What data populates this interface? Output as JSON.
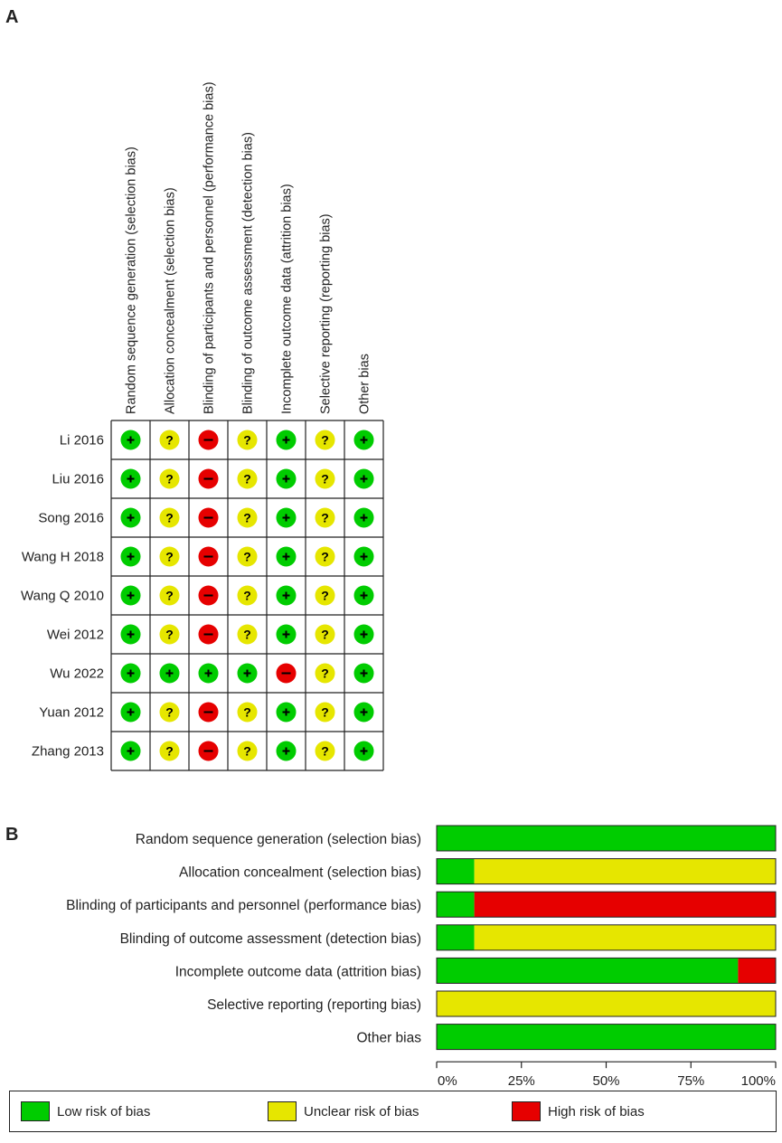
{
  "panels": {
    "a_label": "A",
    "b_label": "B"
  },
  "colors": {
    "low": "#00cc00",
    "unclear": "#e6e600",
    "high": "#e60000"
  },
  "chart_data": [
    {
      "type": "table",
      "domains": [
        "Random sequence generation (selection bias)",
        "Allocation concealment (selection bias)",
        "Blinding of participants and personnel (performance bias)",
        "Blinding of outcome assessment (detection bias)",
        "Incomplete outcome data (attrition bias)",
        "Selective reporting (reporting bias)",
        "Other bias"
      ],
      "studies": [
        {
          "name": "Li 2016",
          "ratings": [
            "+",
            "?",
            "-",
            "?",
            "+",
            "?",
            "+"
          ]
        },
        {
          "name": "Liu 2016",
          "ratings": [
            "+",
            "?",
            "-",
            "?",
            "+",
            "?",
            "+"
          ]
        },
        {
          "name": "Song 2016",
          "ratings": [
            "+",
            "?",
            "-",
            "?",
            "+",
            "?",
            "+"
          ]
        },
        {
          "name": "Wang H 2018",
          "ratings": [
            "+",
            "?",
            "-",
            "?",
            "+",
            "?",
            "+"
          ]
        },
        {
          "name": "Wang Q 2010",
          "ratings": [
            "+",
            "?",
            "-",
            "?",
            "+",
            "?",
            "+"
          ]
        },
        {
          "name": "Wei 2012",
          "ratings": [
            "+",
            "?",
            "-",
            "?",
            "+",
            "?",
            "+"
          ]
        },
        {
          "name": "Wu 2022",
          "ratings": [
            "+",
            "+",
            "+",
            "+",
            "-",
            "?",
            "+"
          ]
        },
        {
          "name": "Yuan 2012",
          "ratings": [
            "+",
            "?",
            "-",
            "?",
            "+",
            "?",
            "+"
          ]
        },
        {
          "name": "Zhang 2013",
          "ratings": [
            "+",
            "?",
            "-",
            "?",
            "+",
            "?",
            "+"
          ]
        }
      ]
    },
    {
      "type": "bar",
      "orientation": "horizontal",
      "stacked": true,
      "categories": [
        "Random sequence generation (selection bias)",
        "Allocation concealment (selection bias)",
        "Blinding of participants and personnel (performance bias)",
        "Blinding of outcome assessment (detection bias)",
        "Incomplete outcome data (attrition bias)",
        "Selective reporting (reporting bias)",
        "Other bias"
      ],
      "series": [
        {
          "name": "Low risk of bias",
          "color": "#00cc00",
          "values": [
            100,
            11.1,
            11.1,
            11.1,
            88.9,
            0,
            100
          ]
        },
        {
          "name": "Unclear risk of bias",
          "color": "#e6e600",
          "values": [
            0,
            88.9,
            0,
            88.9,
            0,
            100,
            0
          ]
        },
        {
          "name": "High risk of bias",
          "color": "#e60000",
          "values": [
            0,
            0,
            88.9,
            0,
            11.1,
            0,
            0
          ]
        }
      ],
      "xlim": [
        0,
        100
      ],
      "xticks": [
        "0%",
        "25%",
        "50%",
        "75%",
        "100%"
      ],
      "legend_position": "bottom"
    }
  ]
}
